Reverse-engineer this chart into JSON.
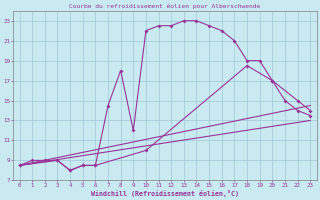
{
  "title": "Courbe du refroidissement éolien pour Alberschwende",
  "xlabel": "Windchill (Refroidissement éolien,°C)",
  "bg_color": "#c8eaf0",
  "line_color": "#993399",
  "grid_color": "#a0c8d8",
  "spine_color": "#808080",
  "xlim": [
    -0.5,
    23.5
  ],
  "ylim": [
    7,
    24
  ],
  "xticks": [
    0,
    1,
    2,
    3,
    4,
    5,
    6,
    7,
    8,
    9,
    10,
    11,
    12,
    13,
    14,
    15,
    16,
    17,
    18,
    19,
    20,
    21,
    22,
    23
  ],
  "yticks": [
    7,
    9,
    11,
    13,
    15,
    17,
    19,
    21,
    23
  ],
  "series1_x": [
    0,
    1,
    2,
    3,
    4,
    5,
    6,
    7,
    8,
    9,
    10,
    11,
    12,
    13,
    14,
    15,
    16,
    17,
    18,
    19,
    20,
    21,
    22,
    23
  ],
  "series1_y": [
    8.5,
    9.0,
    9.0,
    9.0,
    8.0,
    8.5,
    8.5,
    14.5,
    18.0,
    12.0,
    22.0,
    22.5,
    22.5,
    23.0,
    23.0,
    22.5,
    22.0,
    21.0,
    19.0,
    19.0,
    17.0,
    15.0,
    14.0,
    13.5
  ],
  "series2_x": [
    0,
    3,
    4,
    5,
    6,
    10,
    18,
    20,
    22,
    23
  ],
  "series2_y": [
    8.5,
    9.0,
    8.0,
    8.5,
    8.5,
    10.0,
    18.5,
    17.0,
    15.0,
    14.0
  ],
  "series3_x": [
    0,
    23
  ],
  "series3_y": [
    8.5,
    13.0
  ],
  "series4_x": [
    0,
    23
  ],
  "series4_y": [
    8.5,
    14.5
  ]
}
